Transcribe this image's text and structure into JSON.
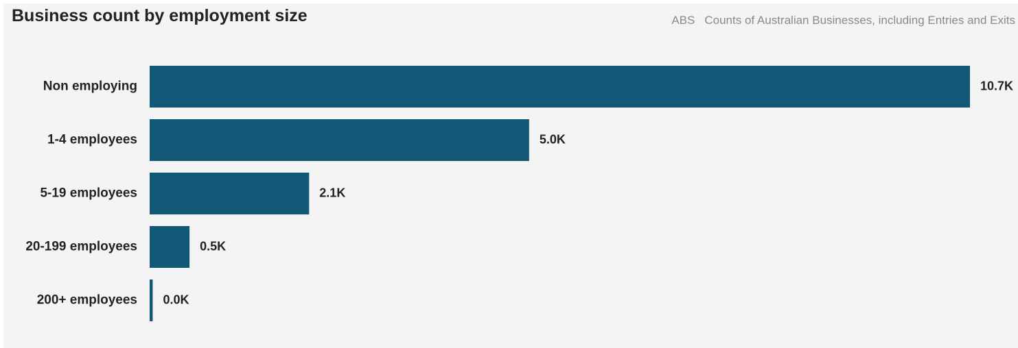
{
  "header": {
    "title": "Business count by employment size",
    "source_org": "ABS",
    "source_name": "Counts of Australian Businesses, including Entries and Exits"
  },
  "colors": {
    "bar": "#115876",
    "background": "#f4f4f4",
    "text": "#222222",
    "subtle_text": "#8a8a8a"
  },
  "chart_data": {
    "type": "bar",
    "orientation": "horizontal",
    "title": "Business count by employment size",
    "xlabel": "",
    "ylabel": "",
    "grid": false,
    "legend": "none",
    "xlim": [
      0,
      10700
    ],
    "categories": [
      "Non employing",
      "1-4 employees",
      "5-19 employees",
      "20-199 employees",
      "200+ employees"
    ],
    "values": [
      10700,
      4950,
      2080,
      520,
      40
    ],
    "value_labels": [
      "10.7K",
      "5.0K",
      "2.1K",
      "0.5K",
      "0.0K"
    ]
  }
}
